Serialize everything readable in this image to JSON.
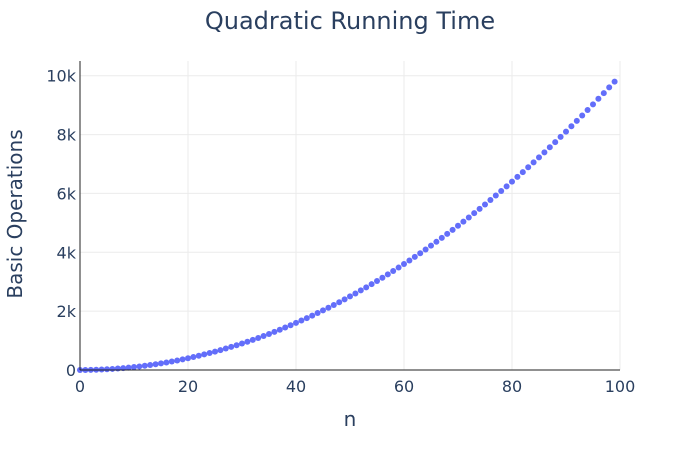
{
  "chart_data": {
    "type": "scatter",
    "title": "Quadratic Running Time",
    "xlabel": "n",
    "ylabel": "Basic Operations",
    "xlim": [
      0,
      100
    ],
    "ylim": [
      0,
      10500
    ],
    "x_ticks": [
      0,
      20,
      40,
      60,
      80,
      100
    ],
    "x_tick_labels": [
      "0",
      "20",
      "40",
      "60",
      "80",
      "100"
    ],
    "y_ticks": [
      0,
      2000,
      4000,
      6000,
      8000,
      10000
    ],
    "y_tick_labels": [
      "0",
      "2k",
      "4k",
      "6k",
      "8k",
      "10k"
    ],
    "grid": true,
    "marker_color": "#636efa",
    "series": [
      {
        "x": [
          0,
          1,
          2,
          3,
          4,
          5,
          6,
          7,
          8,
          9,
          10,
          11,
          12,
          13,
          14,
          15,
          16,
          17,
          18,
          19,
          20,
          21,
          22,
          23,
          24,
          25,
          26,
          27,
          28,
          29,
          30,
          31,
          32,
          33,
          34,
          35,
          36,
          37,
          38,
          39,
          40,
          41,
          42,
          43,
          44,
          45,
          46,
          47,
          48,
          49,
          50,
          51,
          52,
          53,
          54,
          55,
          56,
          57,
          58,
          59,
          60,
          61,
          62,
          63,
          64,
          65,
          66,
          67,
          68,
          69,
          70,
          71,
          72,
          73,
          74,
          75,
          76,
          77,
          78,
          79,
          80,
          81,
          82,
          83,
          84,
          85,
          86,
          87,
          88,
          89,
          90,
          91,
          92,
          93,
          94,
          95,
          96,
          97,
          98,
          99
        ],
        "y": [
          0,
          1,
          4,
          9,
          16,
          25,
          36,
          49,
          64,
          81,
          100,
          121,
          144,
          169,
          196,
          225,
          256,
          289,
          324,
          361,
          400,
          441,
          484,
          529,
          576,
          625,
          676,
          729,
          784,
          841,
          900,
          961,
          1024,
          1089,
          1156,
          1225,
          1296,
          1369,
          1444,
          1521,
          1600,
          1681,
          1764,
          1849,
          1936,
          2025,
          2116,
          2209,
          2304,
          2401,
          2500,
          2601,
          2704,
          2809,
          2916,
          3025,
          3136,
          3249,
          3364,
          3481,
          3600,
          3721,
          3844,
          3969,
          4096,
          4225,
          4356,
          4489,
          4624,
          4761,
          4900,
          5041,
          5184,
          5329,
          5476,
          5625,
          5776,
          5929,
          6084,
          6241,
          6400,
          6561,
          6724,
          6889,
          7056,
          7225,
          7396,
          7569,
          7744,
          7921,
          8100,
          8281,
          8464,
          8649,
          8836,
          9025,
          9216,
          9409,
          9604,
          9801
        ]
      }
    ]
  }
}
